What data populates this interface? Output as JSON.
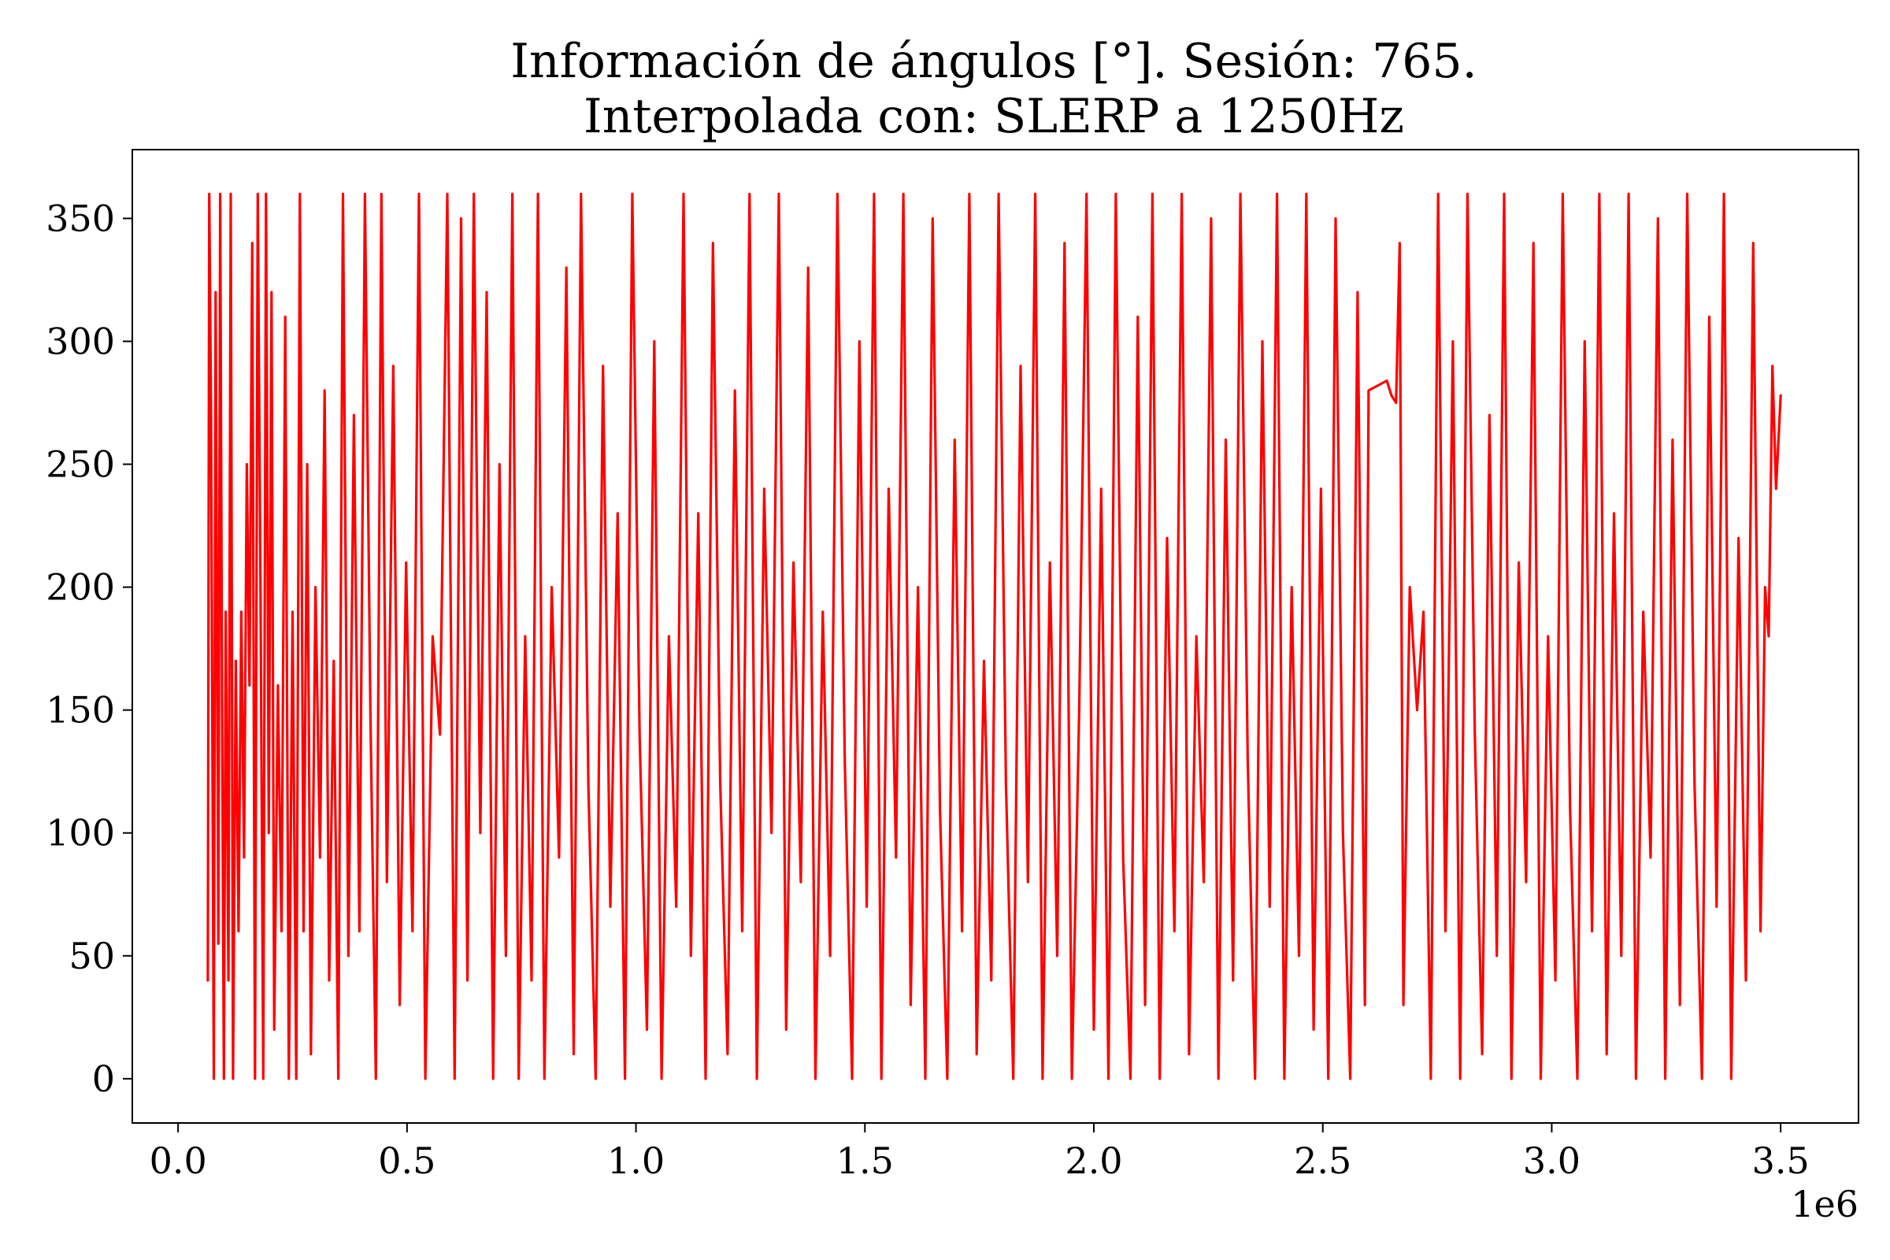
{
  "chart_data": {
    "type": "line",
    "title": "Información de ángulos [°]. Sesión: 765.",
    "subtitle": "Interpolada con: SLERP a 1250Hz",
    "xlabel": "",
    "ylabel": "",
    "x_offset_label": "1e6",
    "xlim": [
      -100000,
      3670000
    ],
    "ylim": [
      -18,
      378
    ],
    "x_ticks": [
      0,
      500000,
      1000000,
      1500000,
      2000000,
      2500000,
      3000000,
      3500000
    ],
    "x_tick_labels": [
      "0.0",
      "0.5",
      "1.0",
      "1.5",
      "2.0",
      "2.5",
      "3.0",
      "3.5"
    ],
    "y_ticks": [
      0,
      50,
      100,
      150,
      200,
      250,
      300,
      350
    ],
    "y_tick_labels": [
      "0",
      "50",
      "100",
      "150",
      "200",
      "250",
      "300",
      "350"
    ],
    "grid": false,
    "legend": "none",
    "series": [
      {
        "color": "#ff0000",
        "points": [
          [
            65000,
            40
          ],
          [
            68000,
            360
          ],
          [
            72000,
            270
          ],
          [
            78000,
            0
          ],
          [
            82000,
            320
          ],
          [
            88000,
            55
          ],
          [
            92000,
            360
          ],
          [
            96000,
            150
          ],
          [
            100000,
            0
          ],
          [
            104000,
            190
          ],
          [
            110000,
            40
          ],
          [
            115000,
            360
          ],
          [
            120000,
            0
          ],
          [
            126000,
            170
          ],
          [
            132000,
            60
          ],
          [
            138000,
            190
          ],
          [
            144000,
            90
          ],
          [
            150000,
            250
          ],
          [
            156000,
            160
          ],
          [
            162000,
            340
          ],
          [
            168000,
            0
          ],
          [
            174000,
            360
          ],
          [
            180000,
            200
          ],
          [
            186000,
            0
          ],
          [
            192000,
            360
          ],
          [
            198000,
            100
          ],
          [
            204000,
            320
          ],
          [
            210000,
            20
          ],
          [
            218000,
            160
          ],
          [
            226000,
            60
          ],
          [
            234000,
            310
          ],
          [
            242000,
            0
          ],
          [
            250000,
            190
          ],
          [
            258000,
            0
          ],
          [
            266000,
            360
          ],
          [
            274000,
            60
          ],
          [
            282000,
            250
          ],
          [
            290000,
            10
          ],
          [
            300000,
            200
          ],
          [
            310000,
            90
          ],
          [
            320000,
            280
          ],
          [
            330000,
            40
          ],
          [
            340000,
            170
          ],
          [
            350000,
            0
          ],
          [
            360000,
            360
          ],
          [
            372000,
            50
          ],
          [
            384000,
            270
          ],
          [
            396000,
            60
          ],
          [
            408000,
            360
          ],
          [
            420000,
            150
          ],
          [
            432000,
            0
          ],
          [
            444000,
            360
          ],
          [
            456000,
            80
          ],
          [
            470000,
            290
          ],
          [
            484000,
            30
          ],
          [
            498000,
            210
          ],
          [
            512000,
            60
          ],
          [
            526000,
            360
          ],
          [
            540000,
            0
          ],
          [
            556000,
            180
          ],
          [
            572000,
            140
          ],
          [
            588000,
            360
          ],
          [
            604000,
            0
          ],
          [
            618000,
            350
          ],
          [
            632000,
            40
          ],
          [
            646000,
            360
          ],
          [
            660000,
            100
          ],
          [
            674000,
            320
          ],
          [
            688000,
            0
          ],
          [
            702000,
            250
          ],
          [
            716000,
            50
          ],
          [
            730000,
            360
          ],
          [
            744000,
            0
          ],
          [
            758000,
            180
          ],
          [
            772000,
            40
          ],
          [
            786000,
            360
          ],
          [
            800000,
            0
          ],
          [
            816000,
            200
          ],
          [
            832000,
            90
          ],
          [
            848000,
            330
          ],
          [
            864000,
            10
          ],
          [
            880000,
            360
          ],
          [
            896000,
            120
          ],
          [
            912000,
            0
          ],
          [
            928000,
            290
          ],
          [
            944000,
            70
          ],
          [
            960000,
            230
          ],
          [
            976000,
            0
          ],
          [
            992000,
            360
          ],
          [
            1008000,
            140
          ],
          [
            1024000,
            20
          ],
          [
            1040000,
            300
          ],
          [
            1056000,
            0
          ],
          [
            1072000,
            180
          ],
          [
            1088000,
            70
          ],
          [
            1104000,
            360
          ],
          [
            1120000,
            50
          ],
          [
            1136000,
            230
          ],
          [
            1152000,
            0
          ],
          [
            1168000,
            340
          ],
          [
            1184000,
            120
          ],
          [
            1200000,
            10
          ],
          [
            1216000,
            280
          ],
          [
            1232000,
            60
          ],
          [
            1248000,
            360
          ],
          [
            1264000,
            0
          ],
          [
            1280000,
            240
          ],
          [
            1296000,
            100
          ],
          [
            1312000,
            360
          ],
          [
            1328000,
            20
          ],
          [
            1344000,
            210
          ],
          [
            1360000,
            80
          ],
          [
            1376000,
            330
          ],
          [
            1392000,
            0
          ],
          [
            1408000,
            190
          ],
          [
            1424000,
            50
          ],
          [
            1440000,
            360
          ],
          [
            1456000,
            130
          ],
          [
            1472000,
            0
          ],
          [
            1488000,
            300
          ],
          [
            1504000,
            70
          ],
          [
            1520000,
            360
          ],
          [
            1536000,
            0
          ],
          [
            1552000,
            240
          ],
          [
            1568000,
            90
          ],
          [
            1584000,
            360
          ],
          [
            1600000,
            30
          ],
          [
            1616000,
            200
          ],
          [
            1632000,
            0
          ],
          [
            1648000,
            350
          ],
          [
            1664000,
            110
          ],
          [
            1680000,
            0
          ],
          [
            1696000,
            260
          ],
          [
            1712000,
            60
          ],
          [
            1728000,
            360
          ],
          [
            1744000,
            10
          ],
          [
            1760000,
            170
          ],
          [
            1776000,
            40
          ],
          [
            1792000,
            360
          ],
          [
            1808000,
            120
          ],
          [
            1824000,
            0
          ],
          [
            1840000,
            290
          ],
          [
            1856000,
            80
          ],
          [
            1872000,
            360
          ],
          [
            1888000,
            0
          ],
          [
            1904000,
            210
          ],
          [
            1920000,
            50
          ],
          [
            1936000,
            340
          ],
          [
            1952000,
            0
          ],
          [
            1968000,
            150
          ],
          [
            1984000,
            360
          ],
          [
            2000000,
            20
          ],
          [
            2016000,
            240
          ],
          [
            2032000,
            0
          ],
          [
            2048000,
            360
          ],
          [
            2064000,
            90
          ],
          [
            2080000,
            0
          ],
          [
            2096000,
            310
          ],
          [
            2112000,
            30
          ],
          [
            2128000,
            360
          ],
          [
            2144000,
            0
          ],
          [
            2160000,
            220
          ],
          [
            2176000,
            60
          ],
          [
            2192000,
            360
          ],
          [
            2208000,
            10
          ],
          [
            2224000,
            180
          ],
          [
            2240000,
            80
          ],
          [
            2256000,
            350
          ],
          [
            2272000,
            0
          ],
          [
            2288000,
            260
          ],
          [
            2304000,
            40
          ],
          [
            2320000,
            360
          ],
          [
            2336000,
            130
          ],
          [
            2352000,
            0
          ],
          [
            2368000,
            300
          ],
          [
            2384000,
            70
          ],
          [
            2400000,
            360
          ],
          [
            2416000,
            0
          ],
          [
            2432000,
            200
          ],
          [
            2448000,
            50
          ],
          [
            2464000,
            360
          ],
          [
            2480000,
            20
          ],
          [
            2496000,
            240
          ],
          [
            2512000,
            0
          ],
          [
            2528000,
            350
          ],
          [
            2544000,
            100
          ],
          [
            2560000,
            0
          ],
          [
            2576000,
            320
          ],
          [
            2592000,
            30
          ],
          [
            2600000,
            280
          ],
          [
            2640000,
            284
          ],
          [
            2650000,
            278
          ],
          [
            2660000,
            275
          ],
          [
            2668000,
            340
          ],
          [
            2676000,
            30
          ],
          [
            2690000,
            200
          ],
          [
            2706000,
            150
          ],
          [
            2720000,
            190
          ],
          [
            2736000,
            0
          ],
          [
            2752000,
            360
          ],
          [
            2768000,
            60
          ],
          [
            2784000,
            300
          ],
          [
            2800000,
            0
          ],
          [
            2816000,
            360
          ],
          [
            2832000,
            140
          ],
          [
            2848000,
            10
          ],
          [
            2864000,
            270
          ],
          [
            2880000,
            50
          ],
          [
            2896000,
            360
          ],
          [
            2912000,
            0
          ],
          [
            2928000,
            210
          ],
          [
            2944000,
            80
          ],
          [
            2960000,
            340
          ],
          [
            2976000,
            0
          ],
          [
            2992000,
            180
          ],
          [
            3008000,
            40
          ],
          [
            3024000,
            360
          ],
          [
            3040000,
            110
          ],
          [
            3056000,
            0
          ],
          [
            3072000,
            300
          ],
          [
            3088000,
            60
          ],
          [
            3104000,
            360
          ],
          [
            3120000,
            10
          ],
          [
            3136000,
            230
          ],
          [
            3152000,
            50
          ],
          [
            3168000,
            360
          ],
          [
            3184000,
            0
          ],
          [
            3200000,
            190
          ],
          [
            3216000,
            90
          ],
          [
            3232000,
            350
          ],
          [
            3248000,
            0
          ],
          [
            3264000,
            260
          ],
          [
            3280000,
            30
          ],
          [
            3296000,
            360
          ],
          [
            3312000,
            120
          ],
          [
            3328000,
            0
          ],
          [
            3344000,
            310
          ],
          [
            3360000,
            70
          ],
          [
            3376000,
            360
          ],
          [
            3392000,
            0
          ],
          [
            3408000,
            220
          ],
          [
            3424000,
            40
          ],
          [
            3440000,
            340
          ],
          [
            3456000,
            60
          ],
          [
            3466000,
            200
          ],
          [
            3474000,
            180
          ],
          [
            3482000,
            290
          ],
          [
            3490000,
            240
          ],
          [
            3500000,
            278
          ]
        ]
      }
    ]
  }
}
